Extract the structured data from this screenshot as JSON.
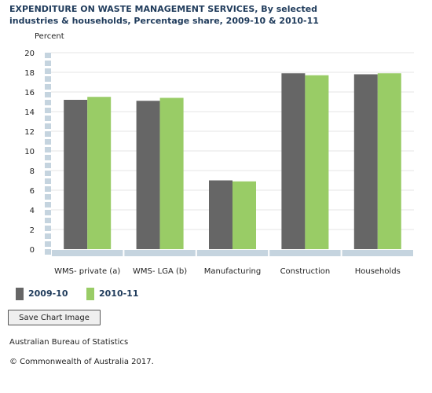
{
  "title": "EXPENDITURE ON WASTE MANAGEMENT SERVICES, By selected industries & households, Percentage share, 2009-10 & 2010-11",
  "colors": {
    "2009-10": "#666666",
    "2010-11": "#99cc66",
    "axis_band": "#c5d4df"
  },
  "chart_data": {
    "type": "bar",
    "title": "EXPENDITURE ON WASTE MANAGEMENT SERVICES, By selected industries & households, Percentage share, 2009-10 & 2010-11",
    "ylabel": "Percent",
    "xlabel": "",
    "ylim": [
      0,
      20
    ],
    "yticks": [
      0,
      2,
      4,
      6,
      8,
      10,
      12,
      14,
      16,
      18,
      20
    ],
    "grid": true,
    "legend_position": "bottom-left",
    "categories": [
      "WMS- private (a)",
      "WMS- LGA (b)",
      "Manufacturing",
      "Construction",
      "Households"
    ],
    "series": [
      {
        "name": "2009-10",
        "values": [
          15.2,
          15.1,
          7.0,
          17.9,
          17.8
        ]
      },
      {
        "name": "2010-11",
        "values": [
          15.5,
          15.4,
          6.9,
          17.7,
          17.9
        ]
      }
    ]
  },
  "save_button_label": "Save Chart Image",
  "footer": {
    "source": "Australian Bureau of Statistics",
    "copyright": "© Commonwealth of Australia 2017."
  }
}
